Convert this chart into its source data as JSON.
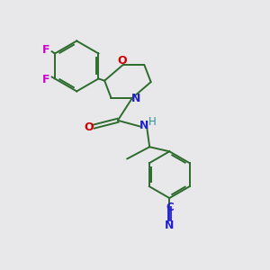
{
  "background_color": "#e8e8eb",
  "bond_color": "#2d6b2d",
  "atom_colors": {
    "F": "#cc00cc",
    "O": "#cc0000",
    "N": "#2222cc",
    "H_color": "#2d9090",
    "C_cyan": "#2222cc"
  },
  "figsize": [
    3.0,
    3.0
  ],
  "dpi": 100
}
